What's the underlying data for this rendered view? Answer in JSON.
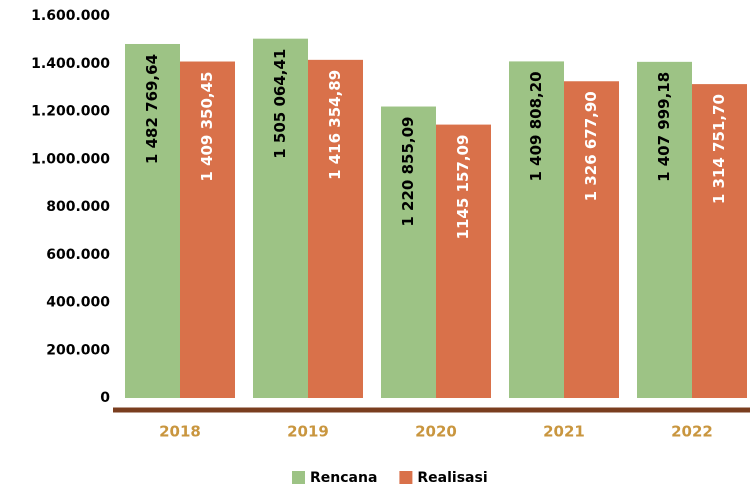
{
  "chart_data": {
    "type": "bar",
    "categories": [
      "2018",
      "2019",
      "2020",
      "2021",
      "2022"
    ],
    "series": [
      {
        "name": "Rencana",
        "color": "#9dc385",
        "label_color": "#000000",
        "values": [
          1482769.64,
          1505064.41,
          1220855.09,
          1409808.2,
          1407999.18
        ],
        "value_labels": [
          "1 482 769,64",
          "1 505 064,41",
          "1 220 855,09",
          "1 409 808,20",
          "1 407 999,18"
        ]
      },
      {
        "name": "Realisasi",
        "color": "#d9714a",
        "label_color": "#ffffff",
        "values": [
          1409350.45,
          1416354.89,
          1145157.09,
          1326677.9,
          1314751.7
        ],
        "value_labels": [
          "1 409 350,45",
          "1 416 354,89",
          "1145 157,09",
          "1 326 677,90",
          "1 314 751,70"
        ]
      }
    ],
    "ylim": [
      0,
      1600000
    ],
    "yticks": [
      0,
      {
        "value": 200000,
        "label": "200.000"
      },
      {
        "value": 400000,
        "label": "400.000"
      },
      {
        "value": 600000,
        "label": "600.000"
      },
      {
        "value": 800000,
        "label": "800.000"
      },
      {
        "value": 1000000,
        "label": "1.000.000"
      },
      {
        "value": 1200000,
        "label": "1.200.000"
      },
      {
        "value": 1400000,
        "label": "1.400.000"
      },
      {
        "value": 1600000,
        "label": "1.600.000"
      }
    ],
    "grid": false,
    "legend": "bottom"
  }
}
